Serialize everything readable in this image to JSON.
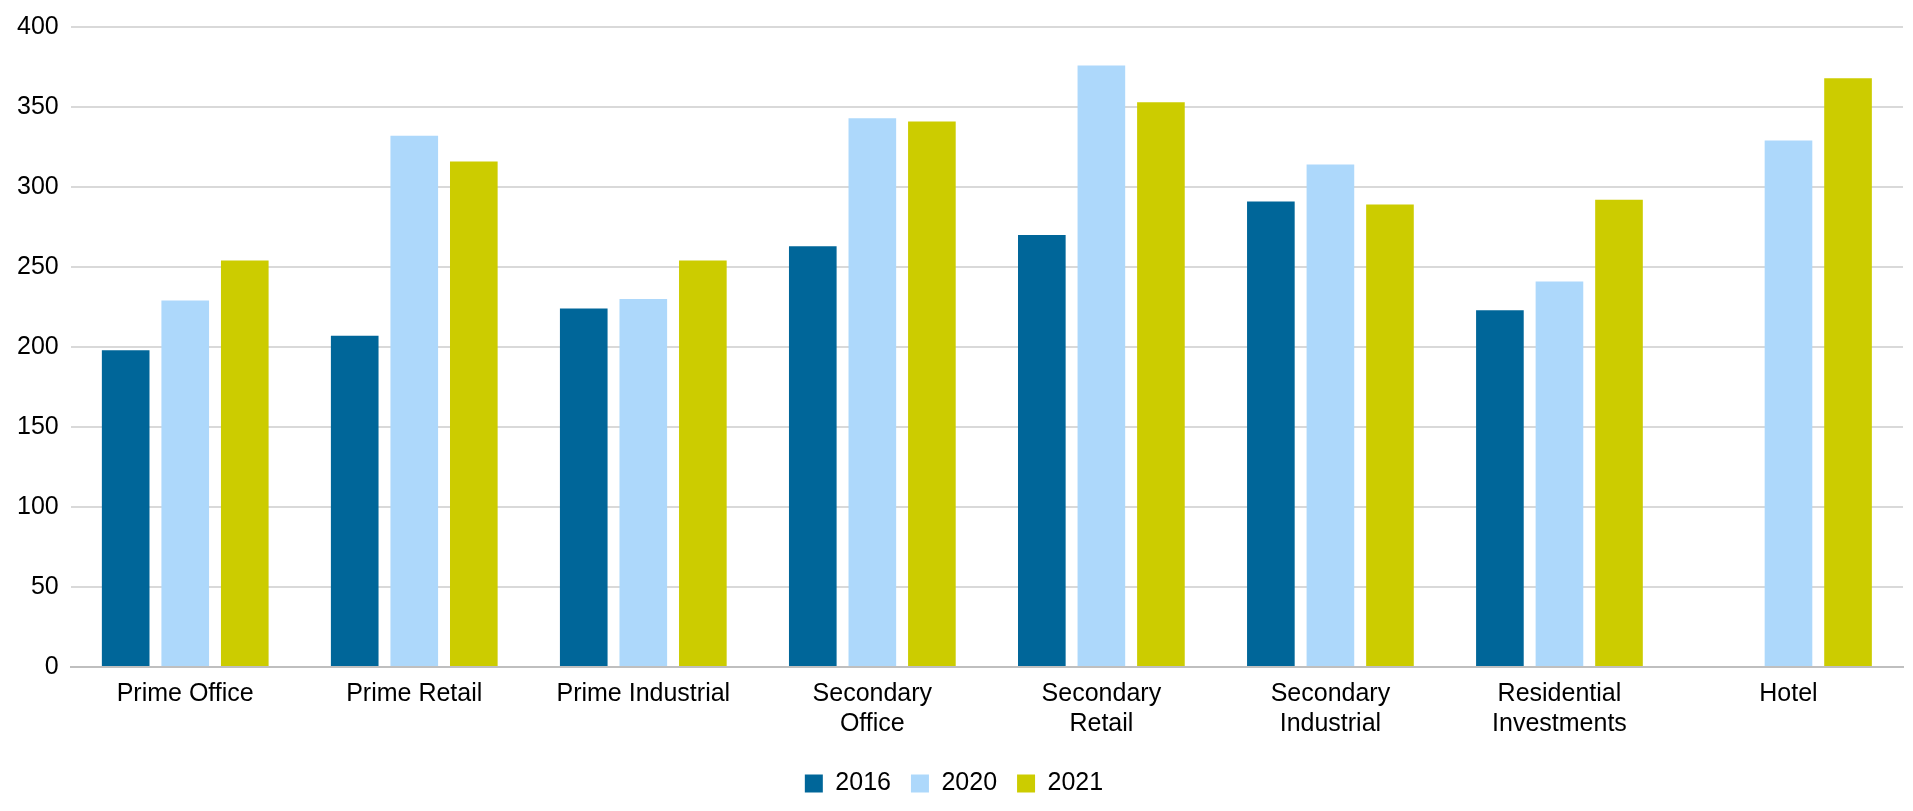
{
  "chart_data": {
    "type": "bar",
    "categories": [
      "Prime Office",
      "Prime Retail",
      "Prime Industrial",
      "Secondary\nOffice",
      "Secondary\nRetail",
      "Secondary\nIndustrial",
      "Residential\nInvestments",
      "Hotel"
    ],
    "series": [
      {
        "name": "2016",
        "color": "#006699",
        "values": [
          198,
          207,
          224,
          263,
          270,
          291,
          223,
          null
        ]
      },
      {
        "name": "2020",
        "color": "#add8fb",
        "values": [
          229,
          332,
          230,
          343,
          376,
          314,
          241,
          329
        ]
      },
      {
        "name": "2021",
        "color": "#cccc00",
        "values": [
          254,
          316,
          254,
          341,
          353,
          289,
          292,
          368
        ]
      }
    ],
    "ylim": [
      0,
      400
    ],
    "yticks": [
      0,
      50,
      100,
      150,
      200,
      250,
      300,
      350,
      400
    ],
    "grid": "y",
    "legend": "bottom"
  }
}
